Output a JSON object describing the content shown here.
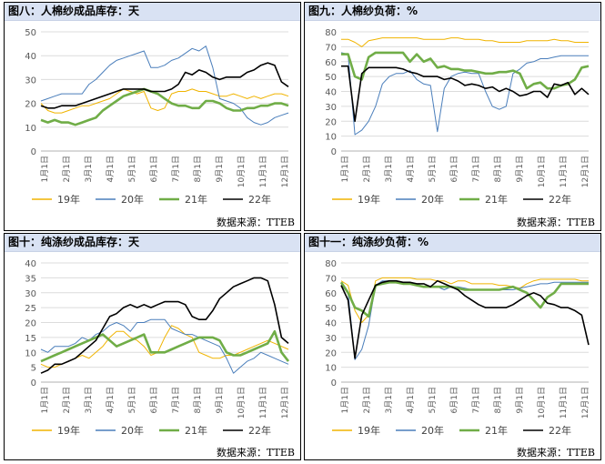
{
  "source": "数据来源：TTEB",
  "legend_names": [
    "19年",
    "20年",
    "21年",
    "22年"
  ],
  "colors": [
    "#f0b400",
    "#4a7ebb",
    "#70ad47",
    "#000000"
  ],
  "months": [
    "1月1日",
    "2月1日",
    "3月1日",
    "4月1日",
    "5月1日",
    "6月1日",
    "7月1日",
    "8月1日",
    "9月1日",
    "10月1日",
    "11月1日",
    "12月1日"
  ],
  "chart_data": [
    {
      "id": "c1",
      "type": "line",
      "title": "图八：人棉纱成品库存：天",
      "ylim": [
        0,
        50
      ],
      "ystep": 10,
      "series": [
        {
          "name": "19年",
          "values": [
            20,
            17,
            16,
            16,
            17,
            18,
            19,
            19,
            20,
            21,
            22,
            24,
            26,
            25,
            24,
            25,
            18,
            17,
            18,
            24,
            25,
            25,
            26,
            25,
            25,
            24,
            23,
            23,
            24,
            23,
            22,
            23,
            22,
            23,
            24,
            24,
            23
          ]
        },
        {
          "name": "20年",
          "values": [
            21,
            22,
            23,
            24,
            24,
            24,
            24,
            28,
            30,
            33,
            36,
            38,
            39,
            40,
            41,
            42,
            35,
            35,
            36,
            38,
            39,
            41,
            43,
            42,
            44,
            35,
            22,
            21,
            20,
            18,
            14,
            12,
            11,
            12,
            14,
            15,
            16
          ]
        },
        {
          "name": "21年",
          "values": [
            13,
            12,
            13,
            12,
            12,
            11,
            12,
            13,
            14,
            17,
            19,
            21,
            23,
            24,
            25,
            26,
            25,
            24,
            22,
            20,
            19,
            19,
            18,
            18,
            21,
            21,
            20,
            18,
            17,
            17,
            18,
            18,
            19,
            19,
            20,
            20,
            19
          ]
        },
        {
          "name": "22年",
          "values": [
            19,
            18,
            18,
            19,
            19,
            19,
            20,
            21,
            22,
            23,
            24,
            25,
            26,
            26,
            26,
            26,
            25,
            25,
            25,
            26,
            28,
            33,
            32,
            34,
            33,
            31,
            30,
            31,
            31,
            31,
            33,
            34,
            36,
            37,
            36,
            29,
            27
          ]
        }
      ]
    },
    {
      "id": "c2",
      "type": "line",
      "title": "图九：人棉纱负荷：%",
      "ylim": [
        0,
        80
      ],
      "ystep": 10,
      "series": [
        {
          "name": "19年",
          "values": [
            75,
            75,
            73,
            70,
            74,
            75,
            76,
            76,
            76,
            76,
            76,
            76,
            75,
            75,
            75,
            75,
            76,
            76,
            75,
            75,
            75,
            74,
            74,
            73,
            73,
            73,
            73,
            74,
            74,
            74,
            74,
            75,
            74,
            74,
            73,
            73,
            73
          ]
        },
        {
          "name": "20年",
          "values": [
            66,
            65,
            11,
            14,
            20,
            30,
            45,
            50,
            52,
            52,
            54,
            48,
            45,
            44,
            13,
            42,
            50,
            52,
            53,
            52,
            52,
            40,
            30,
            28,
            30,
            52,
            55,
            59,
            60,
            62,
            62,
            63,
            64,
            64,
            64,
            64,
            64
          ]
        },
        {
          "name": "21年",
          "values": [
            65,
            65,
            50,
            48,
            63,
            66,
            66,
            66,
            66,
            66,
            60,
            65,
            60,
            62,
            56,
            57,
            55,
            55,
            54,
            54,
            53,
            52,
            52,
            53,
            53,
            54,
            52,
            42,
            45,
            46,
            42,
            42,
            44,
            45,
            48,
            56,
            57
          ]
        },
        {
          "name": "22年",
          "values": [
            57,
            57,
            20,
            52,
            56,
            56,
            56,
            56,
            56,
            55,
            53,
            52,
            50,
            50,
            50,
            48,
            49,
            47,
            44,
            45,
            44,
            42,
            43,
            40,
            42,
            40,
            37,
            38,
            40,
            40,
            36,
            45,
            44,
            46,
            38,
            42,
            38
          ]
        }
      ]
    },
    {
      "id": "c3",
      "type": "line",
      "title": "图十：纯涤纱成品库存：天",
      "ylim": [
        0,
        40
      ],
      "ystep": 5,
      "series": [
        {
          "name": "19年",
          "values": [
            6,
            5,
            5,
            6,
            7,
            8,
            9,
            8,
            10,
            12,
            15,
            17,
            17,
            15,
            14,
            12,
            9,
            10,
            15,
            19,
            18,
            16,
            15,
            10,
            9,
            8,
            8,
            9,
            9,
            10,
            11,
            12,
            13,
            14,
            13,
            12,
            11
          ]
        },
        {
          "name": "20年",
          "values": [
            11,
            10,
            12,
            12,
            12,
            13,
            15,
            14,
            16,
            17,
            19,
            20,
            19,
            17,
            20,
            20,
            21,
            21,
            21,
            18,
            17,
            16,
            16,
            15,
            14,
            13,
            12,
            8,
            3,
            5,
            7,
            8,
            10,
            9,
            8,
            7,
            6
          ]
        },
        {
          "name": "21年",
          "values": [
            7,
            8,
            9,
            10,
            11,
            12,
            13,
            14,
            15,
            16,
            14,
            12,
            13,
            14,
            15,
            16,
            10,
            10,
            10,
            11,
            12,
            13,
            14,
            15,
            15,
            15,
            14,
            10,
            9,
            9,
            10,
            11,
            12,
            13,
            17,
            10,
            7
          ]
        },
        {
          "name": "22年",
          "values": [
            3,
            4,
            6,
            6,
            7,
            8,
            10,
            12,
            14,
            18,
            22,
            23,
            25,
            26,
            25,
            26,
            25,
            26,
            27,
            27,
            27,
            26,
            22,
            21,
            21,
            24,
            28,
            30,
            32,
            33,
            34,
            35,
            35,
            34,
            26,
            15,
            13
          ]
        }
      ]
    },
    {
      "id": "c4",
      "type": "line",
      "title": "图十一：纯涤纱负荷：%",
      "ylim": [
        0,
        80
      ],
      "ystep": 10,
      "series": [
        {
          "name": "19年",
          "values": [
            68,
            65,
            48,
            40,
            45,
            68,
            70,
            70,
            70,
            70,
            70,
            69,
            69,
            69,
            68,
            68,
            66,
            68,
            68,
            66,
            66,
            66,
            66,
            65,
            65,
            64,
            63,
            66,
            68,
            69,
            69,
            69,
            69,
            69,
            69,
            68,
            68
          ]
        },
        {
          "name": "20年",
          "values": [
            65,
            60,
            15,
            22,
            38,
            65,
            68,
            68,
            68,
            67,
            67,
            66,
            64,
            64,
            64,
            62,
            64,
            64,
            63,
            62,
            62,
            62,
            62,
            62,
            62,
            62,
            63,
            64,
            65,
            66,
            66,
            67,
            67,
            67,
            67,
            67,
            67
          ]
        },
        {
          "name": "21年",
          "values": [
            67,
            60,
            50,
            48,
            44,
            65,
            66,
            67,
            67,
            66,
            66,
            65,
            64,
            64,
            64,
            64,
            64,
            63,
            62,
            62,
            62,
            62,
            62,
            62,
            63,
            64,
            62,
            60,
            55,
            50,
            57,
            60,
            66,
            66,
            66,
            66,
            66
          ]
        },
        {
          "name": "22年",
          "values": [
            65,
            55,
            16,
            45,
            55,
            65,
            67,
            68,
            68,
            67,
            67,
            66,
            66,
            64,
            68,
            66,
            64,
            62,
            58,
            55,
            52,
            50,
            50,
            50,
            50,
            52,
            55,
            58,
            60,
            58,
            53,
            52,
            50,
            50,
            48,
            45,
            25
          ]
        }
      ]
    }
  ]
}
